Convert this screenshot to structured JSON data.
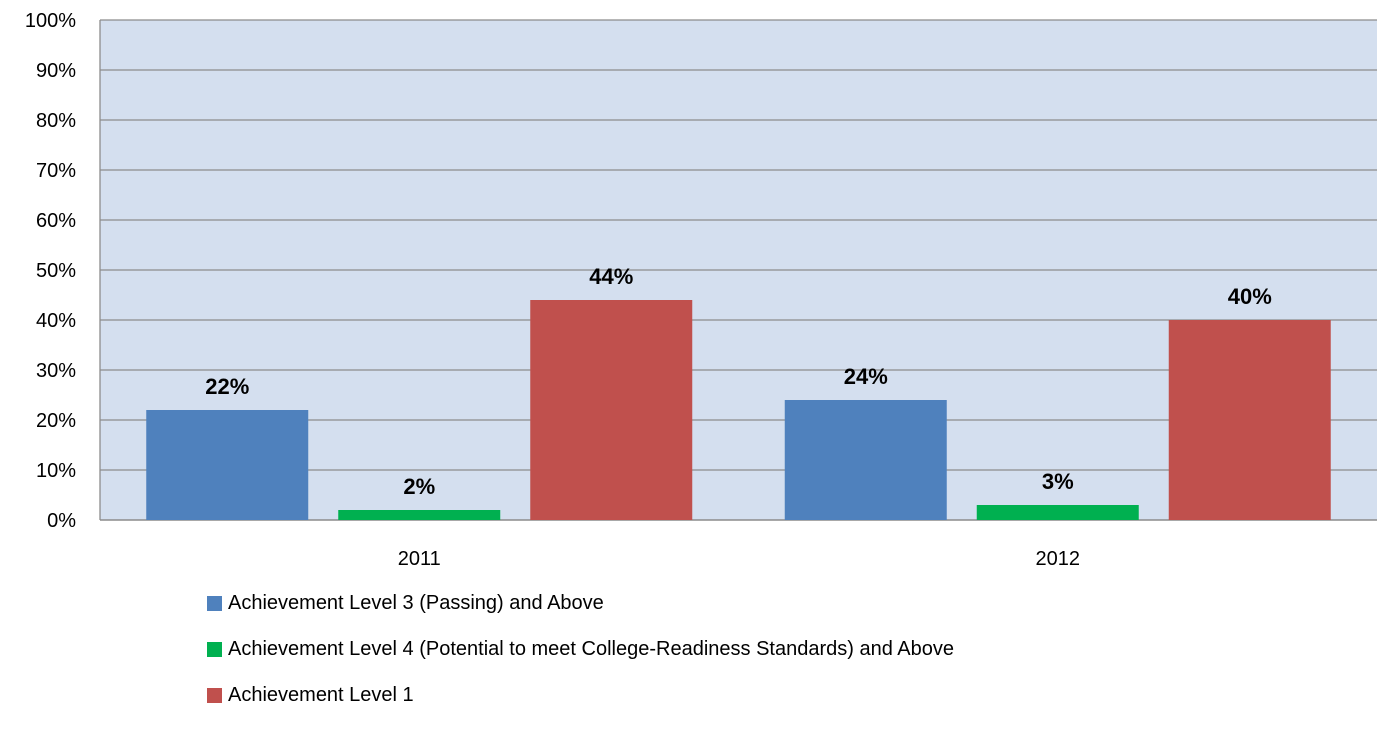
{
  "chart_data": {
    "type": "bar",
    "categories": [
      "2011",
      "2012"
    ],
    "series": [
      {
        "name": "Achievement Level 3 (Passing) and Above",
        "color": "#4f81bd",
        "values": [
          22,
          24
        ],
        "labels": [
          "22%",
          "24%"
        ]
      },
      {
        "name": "Achievement Level 4 (Potential to meet College-Readiness Standards) and Above",
        "color": "#00b050",
        "values": [
          2,
          3
        ],
        "labels": [
          "2%",
          "3%"
        ]
      },
      {
        "name": "Achievement Level 1",
        "color": "#c0504d",
        "values": [
          44,
          40
        ],
        "labels": [
          "44%",
          "40%"
        ]
      }
    ],
    "ylim": [
      0,
      100
    ],
    "yticks": [
      "0%",
      "10%",
      "20%",
      "30%",
      "40%",
      "50%",
      "60%",
      "70%",
      "80%",
      "90%",
      "100%"
    ],
    "plot_background": "#d4dfef",
    "grid": true,
    "legend_position": "bottom",
    "title": "",
    "xlabel": "",
    "ylabel": ""
  }
}
